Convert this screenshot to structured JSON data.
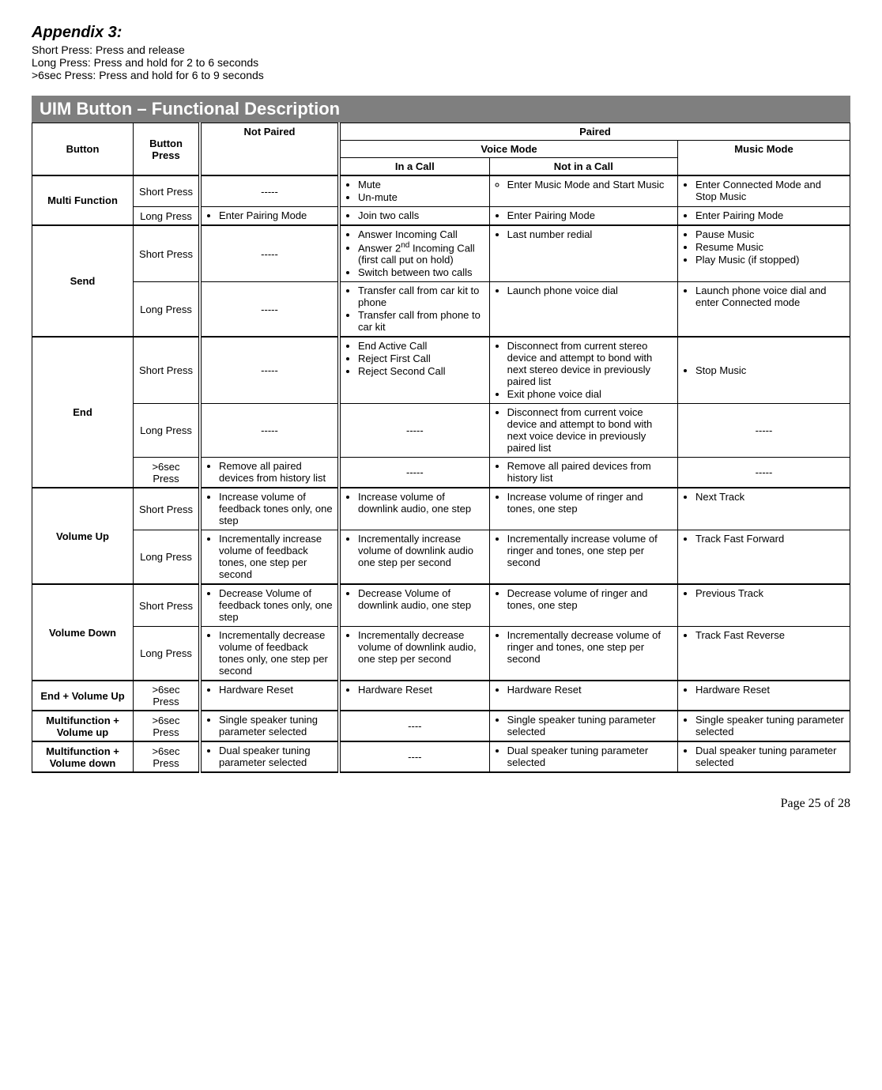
{
  "header": {
    "appendix": "Appendix 3:",
    "defs": [
      "Short Press: Press and release",
      "Long Press: Press and hold for 2 to 6 seconds",
      ">6sec Press: Press and hold for 6 to 9 seconds"
    ]
  },
  "section_title": "UIM Button – Functional Description",
  "columns": {
    "button": "Button",
    "press": "Button Press",
    "not_paired": "Not Paired",
    "paired": "Paired",
    "voice_mode": "Voice Mode",
    "music_mode": "Music Mode",
    "in_call": "In a Call",
    "not_in_call": "Not in a Call"
  },
  "dash": "-----",
  "dash4": "----",
  "buttons": {
    "mf": "Multi Function",
    "send": "Send",
    "end": "End",
    "vup": "Volume Up",
    "vdown": "Volume Down",
    "end_vup": "End + Volume Up",
    "mf_vup": "Multifunction + Volume up",
    "mf_vdown": "Multifunction + Volume down"
  },
  "press": {
    "short": "Short Press",
    "long": "Long Press",
    "gt6": ">6sec Press"
  },
  "cells": {
    "mf_short_in": [
      "Mute",
      "Un-mute"
    ],
    "mf_short_nic_item": "Enter Music Mode and Start Music",
    "mf_short_mm": [
      "Enter Connected Mode and Stop Music"
    ],
    "mf_long_np": [
      "Enter Pairing Mode"
    ],
    "mf_long_in": [
      "Join two calls"
    ],
    "mf_long_nic": [
      "Enter Pairing Mode"
    ],
    "mf_long_mm": [
      "Enter Pairing Mode"
    ],
    "send_short_in_0": "Answer Incoming Call",
    "send_short_in_1_pre": "Answer 2",
    "send_short_in_1_sup": "nd",
    "send_short_in_1_post": " Incoming Call (first call put on hold)",
    "send_short_in_2": "Switch between two calls",
    "send_short_nic": [
      "Last number redial"
    ],
    "send_short_mm": [
      "Pause Music",
      "Resume Music",
      "Play Music (if stopped)"
    ],
    "send_long_in": [
      "Transfer call from car kit to phone",
      "Transfer call from phone to car kit"
    ],
    "send_long_nic": [
      "Launch phone voice dial"
    ],
    "send_long_mm": [
      "Launch phone voice dial and enter Connected mode"
    ],
    "end_short_in": [
      "End Active Call",
      "Reject First Call",
      "Reject Second Call"
    ],
    "end_short_nic": [
      "Disconnect from current stereo device and attempt to bond with next stereo device in previously paired list",
      "Exit phone voice dial"
    ],
    "end_short_mm": [
      "Stop Music"
    ],
    "end_long_nic": [
      "Disconnect from current voice device and attempt to bond with next voice device in previously paired list"
    ],
    "end_gt6_np": [
      "Remove all paired devices from history list"
    ],
    "end_gt6_nic": [
      "Remove all paired devices from history list"
    ],
    "vup_short_np": [
      "Increase volume of feedback tones only, one step"
    ],
    "vup_short_in": [
      "Increase volume of downlink audio, one step"
    ],
    "vup_short_nic": [
      "Increase volume of ringer and tones, one step"
    ],
    "vup_short_mm": [
      "Next Track"
    ],
    "vup_long_np": [
      "Incrementally increase volume of feedback tones, one step per second"
    ],
    "vup_long_in": [
      "Incrementally increase volume of downlink audio one step per second"
    ],
    "vup_long_nic": [
      "Incrementally increase volume of ringer and tones, one step per second"
    ],
    "vup_long_mm": [
      "Track Fast Forward"
    ],
    "vdn_short_np": [
      "Decrease Volume of feedback tones only, one step"
    ],
    "vdn_short_in": [
      "Decrease Volume of downlink audio, one step"
    ],
    "vdn_short_nic": [
      "Decrease volume of ringer and tones, one step"
    ],
    "vdn_short_mm": [
      "Previous Track"
    ],
    "vdn_long_np": [
      "Incrementally decrease volume of feedback tones only, one step per second"
    ],
    "vdn_long_in": [
      "Incrementally decrease volume of downlink audio, one step per second"
    ],
    "vdn_long_nic": [
      "Incrementally decrease volume of ringer and tones, one step per second"
    ],
    "vdn_long_mm": [
      "Track Fast Reverse"
    ],
    "endvup_np": [
      "Hardware Reset"
    ],
    "endvup_in": [
      "Hardware Reset"
    ],
    "endvup_nic": [
      "Hardware Reset"
    ],
    "endvup_mm": [
      "Hardware Reset"
    ],
    "mfvup_np": [
      "Single speaker tuning parameter selected"
    ],
    "mfvup_nic": [
      "Single speaker tuning parameter selected"
    ],
    "mfvup_mm": [
      "Single speaker tuning parameter selected"
    ],
    "mfvdn_np": [
      "Dual speaker tuning parameter selected"
    ],
    "mfvdn_nic": [
      "Dual speaker tuning parameter selected"
    ],
    "mfvdn_mm": [
      "Dual speaker tuning parameter selected"
    ]
  },
  "page": "Page 25 of 28"
}
